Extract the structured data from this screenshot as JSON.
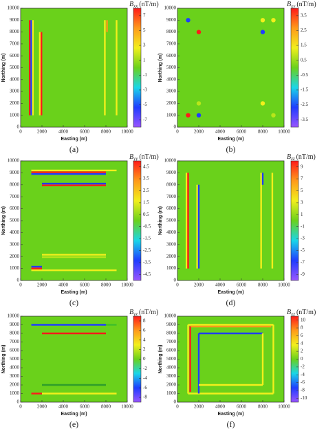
{
  "chart_data": [
    {
      "type": "heatmap",
      "caption": "(a)",
      "title": {
        "symbol": "B",
        "subscript": "xx",
        "unit": "(nT/m)"
      },
      "xlabel": "Easting (m)",
      "ylabel": "Northing (m)",
      "xlim": [
        0,
        10000
      ],
      "ylim": [
        0,
        10000
      ],
      "xticks": [
        0,
        2000,
        4000,
        6000,
        8000,
        10000
      ],
      "yticks": [
        0,
        1000,
        2000,
        3000,
        4000,
        5000,
        6000,
        7000,
        8000,
        9000,
        10000
      ],
      "clim": [
        -8,
        8
      ],
      "cticks": [
        -7,
        -5,
        -3,
        -1,
        1,
        3,
        5,
        7
      ],
      "colormap": [
        "#9a55ff",
        "#1f3dff",
        "#1ad6e8",
        "#6ad11b",
        "#f2ef1c",
        "#ff9a1a",
        "#ff1a1a"
      ],
      "background": "#6ad11b",
      "features": [
        {
          "x": [
            850,
            850
          ],
          "y": [
            1000,
            9000
          ],
          "color": "#ff1a1a"
        },
        {
          "x": [
            1000,
            1000
          ],
          "y": [
            1000,
            9000
          ],
          "color": "#1f3dff"
        },
        {
          "x": [
            1150,
            1150
          ],
          "y": [
            1000,
            9000
          ],
          "color": "#f2ef1c"
        },
        {
          "x": [
            1800,
            1800
          ],
          "y": [
            1000,
            8000
          ],
          "color": "#f2ef1c"
        },
        {
          "x": [
            1950,
            1950
          ],
          "y": [
            1000,
            8000
          ],
          "color": "#ff1a1a"
        },
        {
          "x": [
            7900,
            7900
          ],
          "y": [
            1000,
            9000
          ],
          "color": "#f2ef1c"
        },
        {
          "x": [
            8100,
            8100
          ],
          "y": [
            8000,
            9000
          ],
          "color": "#ff9a1a"
        },
        {
          "x": [
            9000,
            9000
          ],
          "y": [
            1000,
            9000
          ],
          "color": "#f2ef1c"
        }
      ]
    },
    {
      "type": "heatmap",
      "caption": "(b)",
      "title": {
        "symbol": "B",
        "subscript": "xy",
        "unit": "(nT/m)"
      },
      "xlabel": "Easting (m)",
      "ylabel": "Northing (m)",
      "xlim": [
        0,
        10000
      ],
      "ylim": [
        0,
        10000
      ],
      "xticks": [
        0,
        2000,
        4000,
        6000,
        8000,
        10000
      ],
      "yticks": [
        0,
        1000,
        2000,
        3000,
        4000,
        5000,
        6000,
        7000,
        8000,
        9000,
        10000
      ],
      "clim": [
        -4,
        4
      ],
      "cticks": [
        -3.5,
        -2.5,
        -1.5,
        -0.5,
        0.5,
        1.5,
        2.5,
        3.5
      ],
      "colormap": [
        "#9a55ff",
        "#1f3dff",
        "#1ad6e8",
        "#6ad11b",
        "#f2ef1c",
        "#ff9a1a",
        "#ff1a1a"
      ],
      "background": "#6ad11b",
      "features": [
        {
          "x": [
            1000,
            1000
          ],
          "y": [
            9000,
            9000
          ],
          "color": "#1f3dff"
        },
        {
          "x": [
            2000,
            2000
          ],
          "y": [
            8000,
            8000
          ],
          "color": "#ff1a1a"
        },
        {
          "x": [
            8000,
            8000
          ],
          "y": [
            9000,
            9000
          ],
          "color": "#f2ef1c"
        },
        {
          "x": [
            8000,
            8000
          ],
          "y": [
            8000,
            8000
          ],
          "color": "#1f3dff"
        },
        {
          "x": [
            9000,
            9000
          ],
          "y": [
            9000,
            9000
          ],
          "color": "#f2ef1c"
        },
        {
          "x": [
            2000,
            2000
          ],
          "y": [
            2000,
            2000
          ],
          "color": "#b8e61a"
        },
        {
          "x": [
            8000,
            8000
          ],
          "y": [
            2000,
            2000
          ],
          "color": "#f2ef1c"
        },
        {
          "x": [
            1000,
            1000
          ],
          "y": [
            1000,
            1000
          ],
          "color": "#ff1a1a"
        },
        {
          "x": [
            2000,
            2000
          ],
          "y": [
            1000,
            1000
          ],
          "color": "#1f3dff"
        },
        {
          "x": [
            9000,
            9000
          ],
          "y": [
            1000,
            1000
          ],
          "color": "#b8e61a"
        }
      ]
    },
    {
      "type": "heatmap",
      "caption": "(c)",
      "title": {
        "symbol": "B",
        "subscript": "yy",
        "unit": "(nT/m)"
      },
      "xlabel": "Easting (m)",
      "ylabel": "Northing (m)",
      "xlim": [
        0,
        10000
      ],
      "ylim": [
        0,
        10000
      ],
      "xticks": [
        0,
        2000,
        4000,
        6000,
        8000,
        10000
      ],
      "yticks": [
        0,
        1000,
        2000,
        3000,
        4000,
        5000,
        6000,
        7000,
        8000,
        9000,
        10000
      ],
      "clim": [
        -5,
        5
      ],
      "cticks": [
        -4.5,
        -3.5,
        -2.5,
        -1.5,
        -0.5,
        0.5,
        1.5,
        2.5,
        3.5,
        4.5
      ],
      "colormap": [
        "#9a55ff",
        "#1f3dff",
        "#1ad6e8",
        "#6ad11b",
        "#f2ef1c",
        "#ff9a1a",
        "#ff1a1a"
      ],
      "background": "#6ad11b",
      "features": [
        {
          "x": [
            1000,
            9000
          ],
          "y": [
            9200,
            9200
          ],
          "color": "#f2ef1c"
        },
        {
          "x": [
            1000,
            8000
          ],
          "y": [
            9050,
            9050
          ],
          "color": "#ff1a1a"
        },
        {
          "x": [
            1000,
            8000
          ],
          "y": [
            8900,
            8900
          ],
          "color": "#1f3dff"
        },
        {
          "x": [
            2000,
            8000
          ],
          "y": [
            8100,
            8100
          ],
          "color": "#1f3dff"
        },
        {
          "x": [
            2000,
            8000
          ],
          "y": [
            7950,
            7950
          ],
          "color": "#ff1a1a"
        },
        {
          "x": [
            2000,
            8000
          ],
          "y": [
            2150,
            2150
          ],
          "color": "#f2ef1c"
        },
        {
          "x": [
            2000,
            8000
          ],
          "y": [
            1950,
            1950
          ],
          "color": "#b8e61a"
        },
        {
          "x": [
            1000,
            2000
          ],
          "y": [
            1150,
            1150
          ],
          "color": "#1f3dff"
        },
        {
          "x": [
            1000,
            2000
          ],
          "y": [
            1000,
            1000
          ],
          "color": "#ff1a1a"
        },
        {
          "x": [
            1000,
            9000
          ],
          "y": [
            850,
            850
          ],
          "color": "#f2ef1c"
        }
      ]
    },
    {
      "type": "heatmap",
      "caption": "(d)",
      "title": {
        "symbol": "B",
        "subscript": "zz",
        "unit": "(nT/m)"
      },
      "xlabel": "Easting (m)",
      "ylabel": "Northing (m)",
      "xlim": [
        0,
        10000
      ],
      "ylim": [
        0,
        10000
      ],
      "xticks": [
        0,
        2000,
        4000,
        6000,
        8000,
        10000
      ],
      "yticks": [
        0,
        1000,
        2000,
        3000,
        4000,
        5000,
        6000,
        7000,
        8000,
        9000,
        10000
      ],
      "clim": [
        -10,
        10
      ],
      "cticks": [
        -9,
        -7,
        -5,
        -3,
        -1,
        1,
        3,
        5,
        7,
        9
      ],
      "colormap": [
        "#9a55ff",
        "#1f3dff",
        "#1ad6e8",
        "#6ad11b",
        "#f2ef1c",
        "#ff9a1a",
        "#ff1a1a"
      ],
      "background": "#6ad11b",
      "features": [
        {
          "x": [
            850,
            850
          ],
          "y": [
            1000,
            9000
          ],
          "color": "#f2ef1c"
        },
        {
          "x": [
            1000,
            1000
          ],
          "y": [
            1000,
            9000
          ],
          "color": "#ff1a1a"
        },
        {
          "x": [
            1850,
            1850
          ],
          "y": [
            1000,
            8000
          ],
          "color": "#f2ef1c"
        },
        {
          "x": [
            2000,
            2000
          ],
          "y": [
            1000,
            8000
          ],
          "color": "#1f3dff"
        },
        {
          "x": [
            7850,
            7850
          ],
          "y": [
            1000,
            9000
          ],
          "color": "#f2ef1c"
        },
        {
          "x": [
            8000,
            8000
          ],
          "y": [
            8000,
            9000
          ],
          "color": "#1f3dff"
        },
        {
          "x": [
            8900,
            8900
          ],
          "y": [
            1000,
            9000
          ],
          "color": "#f2ef1c"
        }
      ]
    },
    {
      "type": "heatmap",
      "caption": "(e)",
      "title": {
        "symbol": "B",
        "subscript": "yz",
        "unit": "(nT/m)"
      },
      "xlabel": "Easting (m)",
      "ylabel": "Northing (m)",
      "xlim": [
        0,
        10000
      ],
      "ylim": [
        0,
        10000
      ],
      "xticks": [
        0,
        2000,
        4000,
        6000,
        8000,
        10000
      ],
      "yticks": [
        0,
        1000,
        2000,
        3000,
        4000,
        5000,
        6000,
        7000,
        8000,
        9000,
        10000
      ],
      "clim": [
        -9,
        9
      ],
      "cticks": [
        -8,
        -6,
        -4,
        -2,
        0,
        2,
        4,
        6,
        8
      ],
      "colormap": [
        "#9a55ff",
        "#1f3dff",
        "#1ad6e8",
        "#6ad11b",
        "#f2ef1c",
        "#ff9a1a",
        "#ff1a1a"
      ],
      "background": "#6ad11b",
      "features": [
        {
          "x": [
            1000,
            8000
          ],
          "y": [
            9000,
            9000
          ],
          "color": "#1f3dff"
        },
        {
          "x": [
            8000,
            9000
          ],
          "y": [
            9000,
            9000
          ],
          "color": "#3fbf2a"
        },
        {
          "x": [
            2000,
            8000
          ],
          "y": [
            8000,
            8000
          ],
          "color": "#ff1a1a"
        },
        {
          "x": [
            2000,
            8000
          ],
          "y": [
            2000,
            2000
          ],
          "color": "#2f9e2a"
        },
        {
          "x": [
            1000,
            2000
          ],
          "y": [
            1000,
            1000
          ],
          "color": "#ff1a1a"
        },
        {
          "x": [
            2000,
            9000
          ],
          "y": [
            1000,
            1000
          ],
          "color": "#f2ef1c"
        }
      ]
    },
    {
      "type": "heatmap",
      "caption": "(f)",
      "title": {
        "symbol": "B",
        "subscript": "xz",
        "unit": "(nT/m)"
      },
      "xlabel": "Easting (m)",
      "ylabel": "Northing (m)",
      "xlim": [
        0,
        10000
      ],
      "ylim": [
        0,
        10000
      ],
      "xticks": [
        0,
        2000,
        4000,
        6000,
        8000,
        10000
      ],
      "yticks": [
        0,
        1000,
        2000,
        3000,
        4000,
        5000,
        6000,
        7000,
        8000,
        9000,
        10000
      ],
      "clim": [
        -11,
        11
      ],
      "cticks": [
        -10,
        -8,
        -6,
        -4,
        -2,
        0,
        2,
        4,
        6,
        8,
        10
      ],
      "colormap": [
        "#9a55ff",
        "#1f3dff",
        "#1ad6e8",
        "#6ad11b",
        "#f2ef1c",
        "#ff9a1a",
        "#ff1a1a"
      ],
      "background": "#6ad11b",
      "features": [
        {
          "x": [
            1000,
            9000
          ],
          "y": [
            9000,
            9000
          ],
          "color": "#f2ef1c"
        },
        {
          "x": [
            1000,
            1000
          ],
          "y": [
            1000,
            9000
          ],
          "color": "#f2ef1c"
        },
        {
          "x": [
            1000,
            9000
          ],
          "y": [
            1000,
            1000
          ],
          "color": "#f2ef1c"
        },
        {
          "x": [
            9000,
            9000
          ],
          "y": [
            1000,
            9000
          ],
          "color": "#f2ef1c"
        },
        {
          "x": [
            1200,
            8800
          ],
          "y": [
            8800,
            8800
          ],
          "color": "#ff9a1a"
        },
        {
          "x": [
            1200,
            1200
          ],
          "y": [
            1200,
            8800
          ],
          "color": "#ff1a1a"
        },
        {
          "x": [
            2000,
            2000
          ],
          "y": [
            1000,
            8000
          ],
          "color": "#1f3dff"
        },
        {
          "x": [
            2000,
            8000
          ],
          "y": [
            8000,
            8000
          ],
          "color": "#1f3dff"
        },
        {
          "x": [
            8000,
            8000
          ],
          "y": [
            2000,
            8000
          ],
          "color": "#f2ef1c"
        },
        {
          "x": [
            2000,
            8000
          ],
          "y": [
            2000,
            2000
          ],
          "color": "#f2ef1c"
        }
      ]
    }
  ]
}
